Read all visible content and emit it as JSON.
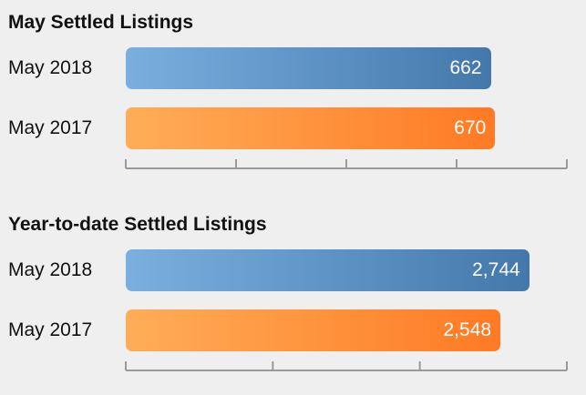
{
  "colors": {
    "background": "#efefef",
    "this_year_bar": "#4478ab",
    "last_year_bar": "#ff7a24",
    "axis": "#9a9a9a"
  },
  "chart_data": [
    {
      "type": "bar",
      "orientation": "horizontal",
      "title": "May Settled Listings",
      "categories": [
        "May 2018",
        "May 2017"
      ],
      "values": [
        662,
        670
      ],
      "value_labels": [
        "662",
        "670"
      ],
      "xlim": [
        0,
        800
      ],
      "tick_count": 5,
      "grid": false,
      "legend": "none"
    },
    {
      "type": "bar",
      "orientation": "horizontal",
      "title": "Year-to-date Settled Listings",
      "categories": [
        "May 2018",
        "May 2017"
      ],
      "values": [
        2744,
        2548
      ],
      "value_labels": [
        "2,744",
        "2,548"
      ],
      "xlim": [
        0,
        3000
      ],
      "tick_count": 4,
      "grid": false,
      "legend": "none"
    }
  ]
}
